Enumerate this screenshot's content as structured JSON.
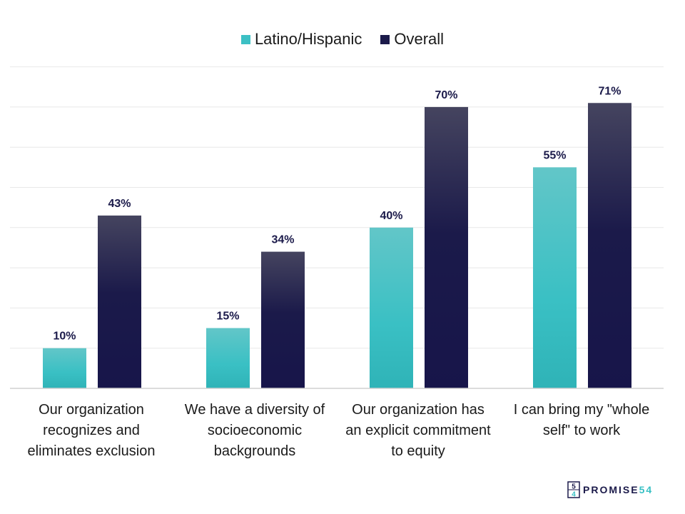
{
  "chart_data": {
    "type": "bar",
    "categories": [
      "Our organization recognizes and eliminates exclusion",
      "We have a diversity of socioeconomic backgrounds",
      "Our organization has an explicit commitment to equity",
      "I can bring my \"whole self\" to work"
    ],
    "category_lines": [
      [
        "Our organization",
        "recognizes and",
        "eliminates exclusion"
      ],
      [
        "We have a diversity of",
        "socioeconomic",
        "backgrounds"
      ],
      [
        "Our organization has",
        "an explicit commitment",
        "to equity"
      ],
      [
        "I can bring my \"whole",
        "self\" to work"
      ]
    ],
    "series": [
      {
        "name": "Latino/Hispanic",
        "values": [
          10,
          15,
          40,
          55
        ],
        "labels": [
          "10%",
          "15%",
          "40%",
          "55%"
        ],
        "color": "#3cc0c4"
      },
      {
        "name": "Overall",
        "values": [
          43,
          34,
          70,
          71
        ],
        "labels": [
          "43%",
          "34%",
          "70%",
          "71%"
        ],
        "color": "#1b1a4a"
      }
    ],
    "ylim": [
      0,
      80
    ],
    "grid": true,
    "legend": "top-center"
  },
  "logo": {
    "prefix": "PROMISE",
    "suffix": "54",
    "mark_top": "5",
    "mark_bottom": "4"
  },
  "colors": {
    "teal": "#3cc0c4",
    "navy": "#1b1a4a",
    "text": "#1a1a1a",
    "grid": "#e6e6e6"
  }
}
